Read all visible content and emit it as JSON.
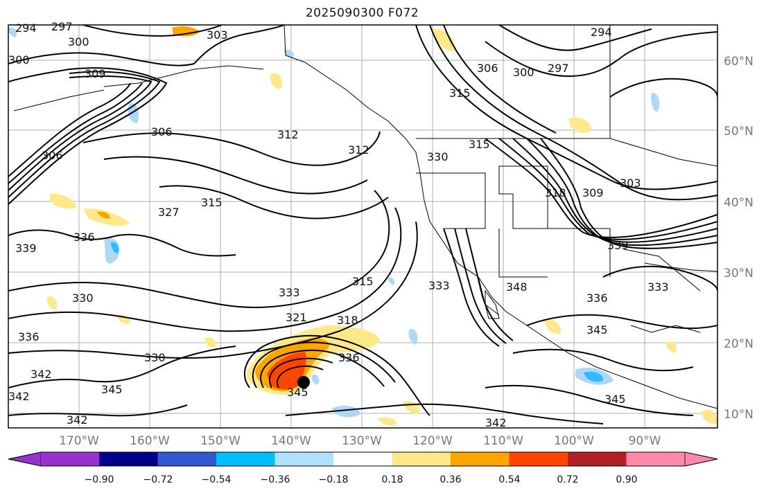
{
  "title": "2025090300 F072",
  "map": {
    "lat_ticks": [
      "60°N",
      "50°N",
      "40°N",
      "30°N",
      "20°N",
      "10°N"
    ],
    "lon_ticks": [
      "170°W",
      "160°W",
      "150°W",
      "140°W",
      "130°W",
      "120°W",
      "110°W",
      "100°W",
      "90°W"
    ],
    "contour_labels": [
      "294",
      "297",
      "300",
      "303",
      "306",
      "309",
      "312",
      "315",
      "318",
      "321",
      "327",
      "330",
      "333",
      "336",
      "339",
      "342",
      "345",
      "348"
    ],
    "storm_marker": "black-dot",
    "fill_colors_positive": [
      "#fde98a",
      "#ffa500",
      "#ff4500"
    ],
    "fill_colors_negative": [
      "#add8f6",
      "#33bbff"
    ]
  },
  "colorbar": {
    "ticks": [
      "−0.90",
      "−0.72",
      "−0.54",
      "−0.36",
      "−0.18",
      "0.18",
      "0.36",
      "0.54",
      "0.72",
      "0.90"
    ],
    "colors": [
      "#9932cc",
      "#00008b",
      "#3158d0",
      "#00bfff",
      "#b0e0ff",
      "#ffffff",
      "#fde98a",
      "#ffa500",
      "#ff4500",
      "#b22222",
      "#ff88aa"
    ]
  }
}
